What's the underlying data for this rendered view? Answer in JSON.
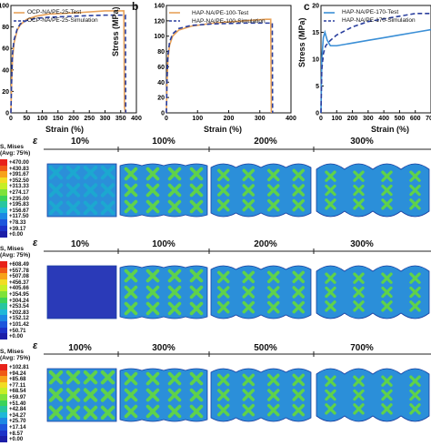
{
  "panels": [
    {
      "letter": "b",
      "legend": [
        "HAP-NA/PE-100-Test",
        "HAP-NA/PE-100-Simulation"
      ],
      "ylabel": "Stress (MPa)",
      "xlabel": "Strain (%)"
    },
    {
      "letter": "c",
      "legend": [
        "HAP-NA/PE-170-Test",
        "HAP-NA/PE-170-Simulation"
      ],
      "ylabel": "Stress (MPa)",
      "xlabel": "Strain (%)"
    }
  ],
  "panel_a_legend": [
    "OCP-NA/PE-25-Test",
    "OCP-NA/PE-25-Simulation"
  ],
  "panel_a_xlabel": "Strain (%)",
  "chart_data": [
    {
      "type": "line",
      "title": "",
      "xlabel": "Strain (%)",
      "ylabel": "",
      "xlim": [
        0,
        400
      ],
      "ylim": [
        0,
        100
      ],
      "xticks": [
        0,
        50,
        100,
        150,
        200,
        250,
        300,
        350,
        400
      ],
      "yticks": [
        0,
        20,
        40,
        60,
        80,
        100
      ],
      "legend": "top-left",
      "series": [
        {
          "name": "OCP-NA/PE-25-Test",
          "color": "#e8a25a",
          "x": [
            0,
            2,
            5,
            10,
            20,
            30,
            50,
            80,
            120,
            200,
            300,
            360,
            362,
            365
          ],
          "y": [
            0,
            25,
            50,
            65,
            77,
            82,
            87,
            90,
            92,
            93,
            95,
            95,
            5,
            0
          ]
        },
        {
          "name": "OCP-NA/PE-25-Simulation",
          "color": "#2a3f9e",
          "x": [
            0,
            2,
            5,
            10,
            20,
            30,
            50,
            80,
            120,
            200,
            300,
            365,
            366
          ],
          "y": [
            0,
            28,
            55,
            68,
            78,
            83,
            86,
            88,
            89,
            90,
            91,
            91,
            0
          ]
        }
      ]
    },
    {
      "type": "line",
      "title": "",
      "xlabel": "Strain (%)",
      "ylabel": "Stress (MPa)",
      "xlim": [
        0,
        400
      ],
      "ylim": [
        0,
        140
      ],
      "xticks": [
        0,
        100,
        200,
        300,
        400
      ],
      "yticks": [
        0,
        20,
        40,
        60,
        80,
        100,
        120,
        140
      ],
      "legend": "top-left",
      "series": [
        {
          "name": "HAP-NA/PE-100-Test",
          "color": "#e8a25a",
          "x": [
            0,
            2,
            5,
            10,
            20,
            40,
            80,
            150,
            250,
            320,
            335,
            337
          ],
          "y": [
            0,
            40,
            70,
            88,
            100,
            108,
            113,
            117,
            120,
            122,
            122,
            0
          ]
        },
        {
          "name": "HAP-NA/PE-100-Simulation",
          "color": "#2a3f9e",
          "x": [
            0,
            2,
            5,
            10,
            20,
            40,
            80,
            150,
            250,
            340,
            341
          ],
          "y": [
            0,
            45,
            75,
            92,
            103,
            110,
            114,
            116,
            117,
            117,
            0
          ]
        }
      ]
    },
    {
      "type": "line",
      "title": "",
      "xlabel": "Strain (%)",
      "ylabel": "Stress (MPa)",
      "xlim": [
        0,
        700
      ],
      "ylim": [
        0,
        20
      ],
      "xticks": [
        0,
        100,
        200,
        300,
        400,
        500,
        600,
        700
      ],
      "yticks": [
        0,
        5,
        10,
        15,
        20
      ],
      "legend": "top-left",
      "series": [
        {
          "name": "HAP-NA/PE-170-Test",
          "color": "#3b8fd6",
          "x": [
            0,
            5,
            15,
            25,
            40,
            60,
            100,
            200,
            300,
            400,
            500,
            600,
            700
          ],
          "y": [
            0,
            10,
            14,
            15,
            13.5,
            12.5,
            12.5,
            13,
            13.5,
            14,
            14.5,
            15,
            15.5
          ]
        },
        {
          "name": "HAP-NA/PE-170-Simulation",
          "color": "#2a3f9e",
          "x": [
            0,
            5,
            15,
            30,
            60,
            100,
            200,
            300,
            400,
            500,
            600,
            700
          ],
          "y": [
            0,
            8,
            11,
            12.5,
            13.5,
            14.5,
            16,
            17,
            17.5,
            18,
            18.5,
            18.5
          ]
        }
      ]
    }
  ],
  "contour_rows": [
    {
      "epsilon": "ε",
      "strains": [
        "10%",
        "100%",
        "200%",
        "300%"
      ],
      "colorbar": {
        "title1": "S, Mises",
        "title2": "(Avg: 75%)",
        "values": [
          "+470.00",
          "+430.83",
          "+391.67",
          "+352.50",
          "+313.33",
          "+274.17",
          "+235.00",
          "+195.83",
          "+156.67",
          "+117.50",
          "+78.33",
          "+39.17",
          "+0.00"
        ]
      }
    },
    {
      "epsilon": "ε",
      "strains": [
        "10%",
        "100%",
        "200%",
        "300%"
      ],
      "colorbar": {
        "title1": "S, Mises",
        "title2": "(Avg: 75%)",
        "values": [
          "+608.49",
          "+557.78",
          "+507.08",
          "+456.37",
          "+405.66",
          "+354.95",
          "+304.24",
          "+253.54",
          "+202.83",
          "+152.12",
          "+101.42",
          "+50.71",
          "+0.00"
        ]
      }
    },
    {
      "epsilon": "ε",
      "strains": [
        "100%",
        "300%",
        "500%",
        "700%"
      ],
      "colorbar": {
        "title1": "S, Mises",
        "title2": "(Avg: 75%)",
        "values": [
          "+102.81",
          "+94.24",
          "+85.68",
          "+77.11",
          "+68.54",
          "+59.97",
          "+51.40",
          "+42.84",
          "+34.27",
          "+25.70",
          "+17.14",
          "+8.57",
          "+0.00"
        ]
      }
    }
  ],
  "colorbar_colors": [
    "#e8221a",
    "#f05a16",
    "#f7a21a",
    "#f2dc22",
    "#c6ee25",
    "#7ee23a",
    "#3bd35a",
    "#27c6a0",
    "#1fb8d8",
    "#1c88e4",
    "#1d56dc",
    "#1d32c8",
    "#1c1ea8"
  ]
}
